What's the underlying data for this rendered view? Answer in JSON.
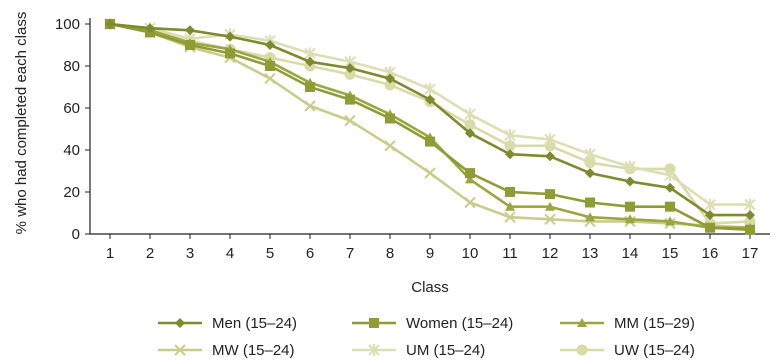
{
  "chart_data": {
    "type": "line",
    "xlabel": "Class",
    "ylabel": "% who had completed each class",
    "ylim": [
      0,
      100
    ],
    "yticks": [
      0,
      20,
      40,
      60,
      80,
      100
    ],
    "x": [
      1,
      2,
      3,
      4,
      5,
      6,
      7,
      8,
      9,
      10,
      11,
      12,
      13,
      14,
      15,
      16,
      17
    ],
    "grid": false,
    "legend_position": "bottom",
    "series": [
      {
        "name": "Men (15–24)",
        "marker": "diamond",
        "color": "#7d8a2e",
        "values": [
          100,
          98,
          97,
          94,
          90,
          82,
          79,
          74,
          64,
          48,
          38,
          37,
          29,
          25,
          22,
          9,
          9
        ]
      },
      {
        "name": "Women (15–24)",
        "marker": "square",
        "color": "#8f9c35",
        "values": [
          100,
          96,
          90,
          86,
          80,
          70,
          64,
          55,
          44,
          29,
          20,
          19,
          15,
          13,
          13,
          3,
          2
        ]
      },
      {
        "name": "MM (15–29)",
        "marker": "triangle",
        "color": "#9aa63f",
        "values": [
          100,
          97,
          91,
          88,
          82,
          72,
          66,
          57,
          46,
          26,
          13,
          13,
          8,
          7,
          6,
          3,
          3
        ]
      },
      {
        "name": "MW (15–24)",
        "marker": "x",
        "color": "#c9cc8a",
        "values": [
          100,
          96,
          89,
          84,
          74,
          61,
          54,
          42,
          29,
          15,
          8,
          7,
          6,
          6,
          5,
          4,
          3
        ]
      },
      {
        "name": "UM (15–24)",
        "marker": "star",
        "color": "#dcdfb4",
        "values": [
          100,
          98,
          93,
          95,
          92,
          86,
          82,
          77,
          69,
          57,
          47,
          45,
          38,
          32,
          28,
          14,
          14
        ]
      },
      {
        "name": "UW (15–24)",
        "marker": "circle",
        "color": "#d8dba8",
        "values": [
          100,
          97,
          92,
          88,
          84,
          80,
          76,
          71,
          63,
          52,
          42,
          42,
          34,
          31,
          31,
          5,
          6
        ]
      }
    ]
  }
}
